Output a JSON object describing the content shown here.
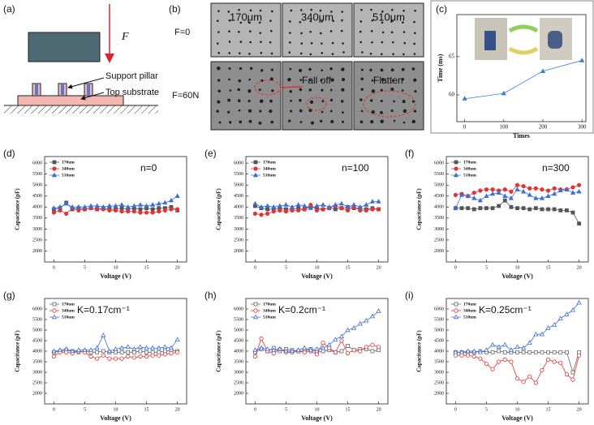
{
  "panels": {
    "a": {
      "label": "(a)",
      "force": "F",
      "support": "Support pillar",
      "substrate": "Top substrate"
    },
    "b": {
      "label": "(b)",
      "columns": [
        "170μm",
        "340μm",
        "510μm"
      ],
      "rows": [
        "F=0",
        "F=60N"
      ],
      "fall_off": "Fall off",
      "flatten": "Flatten"
    }
  },
  "chart_data": [
    {
      "type": "line",
      "label": "(c)",
      "x_label": "Times",
      "y_label": "Time (ms)",
      "x": [
        0,
        100,
        200,
        300
      ],
      "values": [
        59.5,
        60.2,
        63.1,
        64.5
      ],
      "color": "#3b7fd0",
      "marker": "triangle",
      "marker_style": "filled",
      "xlim": [
        -20,
        310
      ],
      "ylim": [
        56.5,
        70.5
      ],
      "xticks": [
        0,
        100,
        200,
        300
      ],
      "yticks": [
        60,
        65
      ]
    },
    {
      "type": "line",
      "label": "(d)",
      "annotation": "n=0",
      "x_label": "Voltage (V)",
      "y_label": "Capacitance (pF)",
      "marker_style": "filled",
      "x": [
        0,
        1,
        2,
        3,
        4,
        5,
        6,
        7,
        8,
        9,
        10,
        11,
        12,
        13,
        14,
        15,
        16,
        17,
        18,
        19,
        20
      ],
      "xlim": [
        -1.5,
        21.5
      ],
      "ylim": [
        1500,
        6300
      ],
      "xticks": [
        0,
        5,
        10,
        15,
        20
      ],
      "yticks": [
        2000,
        2500,
        3000,
        3500,
        4000,
        4500,
        5000,
        5500,
        6000
      ],
      "series": [
        {
          "name": "170um",
          "color": "#555555",
          "marker": "square",
          "values": [
            3900,
            3950,
            4200,
            3900,
            3950,
            3900,
            3950,
            3900,
            3950,
            3900,
            3900,
            3950,
            3900,
            3950,
            3900,
            3950,
            3900,
            3950,
            3950,
            4000,
            3850
          ]
        },
        {
          "name": "340um",
          "color": "#e03535",
          "marker": "circle",
          "values": [
            3750,
            3850,
            3700,
            3950,
            3850,
            3900,
            3950,
            3900,
            3900,
            3850,
            3850,
            3800,
            3800,
            3800,
            3750,
            3750,
            3750,
            3800,
            3850,
            3900,
            3900
          ]
        },
        {
          "name": "510um",
          "color": "#3b6fd8",
          "marker": "triangle",
          "values": [
            3950,
            4000,
            4150,
            4000,
            4000,
            4000,
            4050,
            4050,
            4000,
            4050,
            4050,
            4100,
            4000,
            4050,
            4100,
            4050,
            4100,
            4150,
            4200,
            4300,
            4500
          ]
        }
      ]
    },
    {
      "type": "line",
      "label": "(e)",
      "annotation": "n=100",
      "x_label": "Voltage (V)",
      "y_label": "Capacitance (pF)",
      "marker_style": "filled",
      "x": [
        0,
        1,
        2,
        3,
        4,
        5,
        6,
        7,
        8,
        9,
        10,
        11,
        12,
        13,
        14,
        15,
        16,
        17,
        18,
        19,
        20
      ],
      "xlim": [
        -1.5,
        21.5
      ],
      "ylim": [
        1500,
        6300
      ],
      "xticks": [
        0,
        5,
        10,
        15,
        20
      ],
      "yticks": [
        2000,
        2500,
        3000,
        3500,
        4000,
        4500,
        5000,
        5500,
        6000
      ],
      "series": [
        {
          "name": "170um",
          "color": "#555555",
          "marker": "square",
          "values": [
            4050,
            3950,
            3900,
            3900,
            3950,
            3900,
            3900,
            3950,
            3900,
            4000,
            3950,
            3900,
            3950,
            3900,
            3950,
            4000,
            3950,
            3950,
            3900,
            3950,
            3900
          ]
        },
        {
          "name": "340um",
          "color": "#e03535",
          "marker": "circle",
          "values": [
            3700,
            3650,
            3700,
            3800,
            3850,
            3800,
            3850,
            3850,
            3900,
            4100,
            3850,
            3900,
            3950,
            4050,
            3950,
            3850,
            4000,
            3850,
            3850,
            3900,
            3900
          ]
        },
        {
          "name": "510um",
          "color": "#3b6fd8",
          "marker": "triangle",
          "values": [
            4150,
            4000,
            4050,
            4000,
            4050,
            4100,
            4000,
            4100,
            4050,
            3950,
            4050,
            4100,
            4000,
            4100,
            4150,
            4000,
            4100,
            4000,
            4100,
            4250,
            4250
          ]
        }
      ]
    },
    {
      "type": "line",
      "label": "(f)",
      "annotation": "n=300",
      "x_label": "Voltage (V)",
      "y_label": "Capacitance (pF)",
      "marker_style": "filled",
      "x": [
        0,
        1,
        2,
        3,
        4,
        5,
        6,
        7,
        8,
        9,
        10,
        11,
        12,
        13,
        14,
        15,
        16,
        17,
        18,
        19,
        20
      ],
      "xlim": [
        -1.5,
        21.5
      ],
      "ylim": [
        1500,
        6300
      ],
      "xticks": [
        0,
        5,
        10,
        15,
        20
      ],
      "yticks": [
        2000,
        2500,
        3000,
        3500,
        4000,
        4500,
        5000,
        5500,
        6000
      ],
      "series": [
        {
          "name": "170um",
          "color": "#555555",
          "marker": "square",
          "values": [
            3950,
            3950,
            3950,
            3900,
            3950,
            3950,
            3950,
            4050,
            4300,
            4000,
            3950,
            3950,
            3900,
            3950,
            3900,
            3900,
            3900,
            3850,
            3850,
            3750,
            3250
          ]
        },
        {
          "name": "340um",
          "color": "#e03535",
          "marker": "circle",
          "values": [
            4550,
            4600,
            4500,
            4650,
            4750,
            4800,
            4800,
            4750,
            4800,
            4700,
            5000,
            4950,
            4850,
            4850,
            4800,
            4750,
            4850,
            4800,
            4800,
            4900,
            5000
          ]
        },
        {
          "name": "510um",
          "color": "#3b6fd8",
          "marker": "triangle",
          "values": [
            3950,
            4550,
            4500,
            4400,
            4300,
            4500,
            4600,
            4650,
            4500,
            4400,
            4800,
            4700,
            4550,
            4400,
            4400,
            4500,
            4600,
            4750,
            4800,
            4650,
            4700
          ]
        }
      ]
    },
    {
      "type": "line",
      "label": "(g)",
      "annotation": "K=0.17cm⁻¹",
      "x_label": "Voltage (V)",
      "y_label": "Capacitance (pF)",
      "marker_style": "open",
      "x": [
        0,
        1,
        2,
        3,
        4,
        5,
        6,
        7,
        8,
        9,
        10,
        11,
        12,
        13,
        14,
        15,
        16,
        17,
        18,
        19,
        20
      ],
      "xlim": [
        -1.5,
        21.5
      ],
      "ylim": [
        1500,
        6500
      ],
      "xticks": [
        0,
        5,
        10,
        15,
        20
      ],
      "yticks": [
        2000,
        2500,
        3000,
        3500,
        4000,
        4500,
        5000,
        5500,
        6000
      ],
      "series": [
        {
          "name": "170um",
          "color": "#666666",
          "marker": "square",
          "values": [
            3950,
            4000,
            4050,
            4000,
            3950,
            4000,
            3950,
            3950,
            4000,
            3950,
            3950,
            3950,
            3950,
            3950,
            4000,
            3950,
            3950,
            3950,
            4000,
            4050,
            4000
          ]
        },
        {
          "name": "340um",
          "color": "#e03535",
          "marker": "circle",
          "values": [
            3750,
            3950,
            3950,
            3900,
            4000,
            3950,
            3750,
            3650,
            3800,
            3650,
            3650,
            3650,
            3750,
            3700,
            3750,
            3750,
            3800,
            3800,
            3850,
            3900,
            3950
          ]
        },
        {
          "name": "510um",
          "color": "#3b6fd8",
          "marker": "triangle",
          "values": [
            4000,
            4050,
            4100,
            4000,
            4050,
            4050,
            4050,
            4150,
            4750,
            4000,
            4100,
            4150,
            4200,
            4100,
            4200,
            4150,
            4150,
            4150,
            4200,
            4150,
            4550
          ]
        }
      ]
    },
    {
      "type": "line",
      "label": "(h)",
      "annotation": "K=0.2cm⁻¹",
      "x_label": "Voltage (V)",
      "y_label": "Capacitance (pF)",
      "marker_style": "open",
      "x": [
        0,
        1,
        2,
        3,
        4,
        5,
        6,
        7,
        8,
        9,
        10,
        11,
        12,
        13,
        14,
        15,
        16,
        17,
        18,
        19,
        20
      ],
      "xlim": [
        -1.5,
        21.5
      ],
      "ylim": [
        1500,
        6500
      ],
      "xticks": [
        0,
        5,
        10,
        15,
        20
      ],
      "yticks": [
        2000,
        2500,
        3000,
        3500,
        4000,
        4500,
        5000,
        5500,
        6000
      ],
      "series": [
        {
          "name": "170um",
          "color": "#666666",
          "marker": "square",
          "values": [
            3950,
            4100,
            4000,
            4150,
            4000,
            4100,
            4050,
            4000,
            4000,
            4100,
            3950,
            4000,
            4050,
            3950,
            4000,
            4250,
            4050,
            4100,
            4100,
            4000,
            4050
          ]
        },
        {
          "name": "340um",
          "color": "#e03535",
          "marker": "circle",
          "values": [
            3750,
            4600,
            4000,
            3900,
            4100,
            3950,
            3950,
            4000,
            3950,
            4000,
            3850,
            4400,
            4150,
            3950,
            4500,
            3900,
            4050,
            4000,
            4200,
            4300,
            4200
          ]
        },
        {
          "name": "510um",
          "color": "#3b6fd8",
          "marker": "triangle",
          "values": [
            4050,
            4150,
            4100,
            4050,
            4100,
            4000,
            4000,
            4050,
            4150,
            4050,
            4100,
            4150,
            4300,
            4550,
            4700,
            5000,
            5100,
            5300,
            5450,
            5650,
            5900
          ]
        }
      ]
    },
    {
      "type": "line",
      "label": "(i)",
      "annotation": "K=0.25cm⁻¹",
      "x_label": "Voltage (V)",
      "y_label": "Capacitance (pF)",
      "marker_style": "open",
      "x": [
        0,
        1,
        2,
        3,
        4,
        5,
        6,
        7,
        8,
        9,
        10,
        11,
        12,
        13,
        14,
        15,
        16,
        17,
        18,
        19,
        20
      ],
      "xlim": [
        -1.5,
        21.5
      ],
      "ylim": [
        1500,
        6500
      ],
      "xticks": [
        0,
        5,
        10,
        15,
        20
      ],
      "yticks": [
        2000,
        2500,
        3000,
        3500,
        4000,
        4500,
        5000,
        5500,
        6000
      ],
      "series": [
        {
          "name": "170um",
          "color": "#666666",
          "marker": "square",
          "values": [
            3950,
            3950,
            3950,
            3950,
            4000,
            3950,
            3950,
            4000,
            3950,
            3950,
            3950,
            3950,
            3950,
            3950,
            3950,
            3950,
            3950,
            3950,
            3950,
            3000,
            3950
          ]
        },
        {
          "name": "340um",
          "color": "#e03535",
          "marker": "circle",
          "values": [
            3800,
            3800,
            3800,
            3750,
            3650,
            3400,
            3150,
            3500,
            3600,
            3500,
            2700,
            2550,
            2800,
            2500,
            3100,
            3600,
            3500,
            3450,
            2900,
            2650,
            3800
          ]
        },
        {
          "name": "510um",
          "color": "#3b6fd8",
          "marker": "triangle",
          "values": [
            3950,
            3950,
            4000,
            4000,
            3950,
            4050,
            4300,
            4200,
            4300,
            4050,
            4200,
            4150,
            4400,
            4800,
            4800,
            5100,
            5250,
            5550,
            5750,
            5950,
            6300
          ]
        }
      ]
    }
  ]
}
